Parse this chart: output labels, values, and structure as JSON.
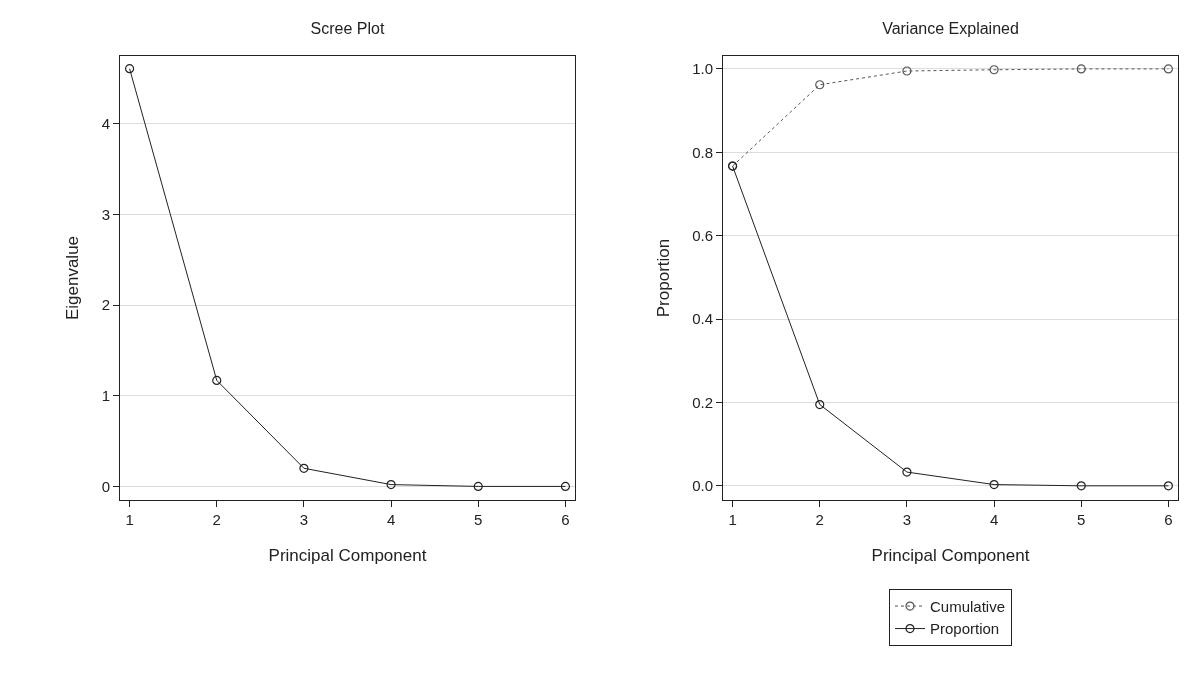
{
  "chart_data": [
    {
      "type": "line",
      "title": "Scree Plot",
      "xlabel": "Principal Component",
      "ylabel": "Eigenvalue",
      "x": [
        1,
        2,
        3,
        4,
        5,
        6
      ],
      "series": [
        {
          "color": "#222222",
          "line_style": "solid",
          "values": [
            4.61,
            1.17,
            0.2,
            0.02,
            0.0,
            0.0
          ]
        }
      ],
      "xlim": [
        0.89,
        6.11
      ],
      "xticks": [
        1,
        2,
        3,
        4,
        5,
        6
      ],
      "ylim": [
        -0.15,
        4.75
      ],
      "yticks": [
        0,
        1,
        2,
        3,
        4
      ],
      "grid": "y",
      "legend": false,
      "marker": "circle"
    },
    {
      "type": "line",
      "title": "Variance Explained",
      "xlabel": "Principal Component",
      "ylabel": "Proportion",
      "x": [
        1,
        2,
        3,
        4,
        5,
        6
      ],
      "series": [
        {
          "name": "Cumulative",
          "color": "#555555",
          "line_style": "dotted",
          "values": [
            0.767,
            0.962,
            0.995,
            0.998,
            1.0,
            1.0
          ]
        },
        {
          "name": "Proportion",
          "color": "#222222",
          "line_style": "solid",
          "values": [
            0.767,
            0.195,
            0.033,
            0.003,
            0.0,
            0.0
          ]
        }
      ],
      "xlim": [
        0.89,
        6.11
      ],
      "xticks": [
        1,
        2,
        3,
        4,
        5,
        6
      ],
      "ylim": [
        -0.034,
        1.031
      ],
      "yticks": [
        {
          "value": 0,
          "label": "0.0"
        },
        {
          "value": 0.2,
          "label": "0.2"
        },
        {
          "value": 0.4,
          "label": "0.4"
        },
        {
          "value": 0.6,
          "label": "0.6"
        },
        {
          "value": 0.8,
          "label": "0.8"
        },
        {
          "value": 1,
          "label": "1.0"
        }
      ],
      "grid": "y",
      "legend": "bottom",
      "marker": "circle"
    }
  ]
}
